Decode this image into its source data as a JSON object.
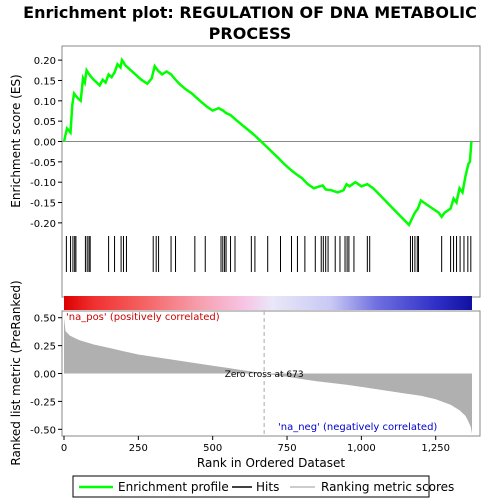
{
  "chart_data": {
    "type": "line",
    "title_line1": "Enrichment plot: REGULATION OF DNA METABOLIC",
    "title_line2": "PROCESS",
    "top_panel": {
      "ylabel": "Enrichment score (ES)",
      "ylim": [
        -0.22,
        0.22
      ],
      "yticks": [
        0.2,
        0.15,
        0.1,
        0.05,
        0.0,
        -0.05,
        -0.1,
        -0.15,
        -0.2
      ],
      "ytick_labels": [
        "0.20",
        "0.15",
        "0.10",
        "0.05",
        "0.00",
        "-0.05",
        "-0.10",
        "-0.15",
        "-0.20"
      ],
      "series_name": "Enrichment profile",
      "line_color": "#00ff00",
      "x": [
        0,
        10,
        22,
        28,
        34,
        40,
        48,
        56,
        64,
        70,
        76,
        82,
        90,
        100,
        110,
        120,
        130,
        140,
        150,
        160,
        170,
        180,
        190,
        195,
        200,
        205,
        220,
        240,
        260,
        280,
        295,
        305,
        315,
        330,
        345,
        360,
        375,
        390,
        410,
        430,
        445,
        460,
        480,
        500,
        520,
        535,
        545,
        560,
        580,
        600,
        620,
        640,
        660,
        680,
        700,
        720,
        740,
        760,
        780,
        800,
        820,
        840,
        860,
        870,
        880,
        900,
        920,
        940,
        950,
        960,
        980,
        1000,
        1020,
        1040,
        1060,
        1080,
        1100,
        1120,
        1140,
        1160,
        1170,
        1180,
        1190,
        1200,
        1220,
        1240,
        1260,
        1270,
        1280,
        1300,
        1310,
        1320,
        1330,
        1340,
        1350,
        1360,
        1365,
        1370
      ],
      "values": [
        0.0,
        0.032,
        0.022,
        0.09,
        0.118,
        0.112,
        0.105,
        0.1,
        0.155,
        0.145,
        0.175,
        0.168,
        0.16,
        0.152,
        0.145,
        0.138,
        0.152,
        0.145,
        0.165,
        0.158,
        0.17,
        0.19,
        0.182,
        0.2,
        0.195,
        0.188,
        0.178,
        0.165,
        0.152,
        0.142,
        0.155,
        0.185,
        0.175,
        0.165,
        0.172,
        0.165,
        0.152,
        0.14,
        0.128,
        0.118,
        0.108,
        0.098,
        0.086,
        0.076,
        0.082,
        0.076,
        0.07,
        0.065,
        0.052,
        0.04,
        0.028,
        0.016,
        0.002,
        -0.012,
        -0.026,
        -0.04,
        -0.055,
        -0.068,
        -0.08,
        -0.09,
        -0.105,
        -0.115,
        -0.11,
        -0.108,
        -0.118,
        -0.12,
        -0.125,
        -0.12,
        -0.105,
        -0.11,
        -0.1,
        -0.11,
        -0.105,
        -0.115,
        -0.13,
        -0.145,
        -0.16,
        -0.175,
        -0.19,
        -0.205,
        -0.19,
        -0.175,
        -0.165,
        -0.145,
        -0.155,
        -0.165,
        -0.175,
        -0.185,
        -0.175,
        -0.165,
        -0.14,
        -0.15,
        -0.115,
        -0.125,
        -0.085,
        -0.055,
        -0.05,
        0.0
      ]
    },
    "hits": [
      8,
      22,
      30,
      36,
      40,
      72,
      78,
      84,
      88,
      150,
      170,
      192,
      200,
      210,
      300,
      310,
      318,
      360,
      375,
      440,
      475,
      528,
      534,
      540,
      545,
      560,
      575,
      630,
      642,
      685,
      728,
      765,
      785,
      810,
      845,
      865,
      872,
      880,
      888,
      912,
      928,
      945,
      952,
      958,
      975,
      1020,
      1028,
      1165,
      1172,
      1180,
      1188,
      1192,
      1270,
      1300,
      1310,
      1320,
      1332,
      1345,
      1358,
      1368
    ],
    "bottom_panel": {
      "ylabel": "Ranked list metric (PreRanked)",
      "ylim": [
        -0.56,
        0.56
      ],
      "yticks": [
        0.5,
        0.25,
        0.0,
        -0.25,
        -0.5
      ],
      "ytick_labels": [
        "0.50",
        "0.25",
        "0.00",
        "-0.25",
        "-0.50"
      ],
      "profile_x": [
        0,
        5,
        20,
        50,
        100,
        150,
        200,
        250,
        300,
        350,
        400,
        450,
        500,
        550,
        600,
        650,
        673,
        700,
        750,
        800,
        850,
        900,
        950,
        1000,
        1050,
        1100,
        1150,
        1200,
        1250,
        1300,
        1330,
        1350,
        1360,
        1368,
        1372
      ],
      "profile_values": [
        0.5,
        0.38,
        0.34,
        0.3,
        0.26,
        0.23,
        0.2,
        0.17,
        0.15,
        0.13,
        0.11,
        0.09,
        0.07,
        0.05,
        0.03,
        0.01,
        0.0,
        -0.01,
        -0.03,
        -0.05,
        -0.07,
        -0.085,
        -0.1,
        -0.12,
        -0.14,
        -0.16,
        -0.18,
        -0.2,
        -0.23,
        -0.28,
        -0.33,
        -0.38,
        -0.43,
        -0.48,
        -0.54
      ],
      "zero_cross_label": "Zero cross at 673",
      "zero_cross_x": 673,
      "pos_label": "'na_pos' (positively correlated)",
      "neg_label": "'na_neg' (negatively correlated)",
      "pos_label_color": "#cc0000",
      "neg_label_color": "#0000cc"
    },
    "xlabel": "Rank in Dataset",
    "xlabel_prefix": "Rank in Ordered Dataset",
    "xlim": [
      0,
      1372
    ],
    "xticks": [
      0,
      250,
      500,
      750,
      1000,
      1250
    ],
    "xtick_labels": [
      "0",
      "250",
      "500",
      "750",
      "1,000",
      "1,250"
    ],
    "legend": {
      "items": [
        {
          "label": "Enrichment profile",
          "kind": "line",
          "color": "#00ff00"
        },
        {
          "label": "Hits",
          "kind": "line",
          "color": "#000000"
        },
        {
          "label": "Ranking metric scores",
          "kind": "line",
          "color": "#bbbbbb"
        }
      ]
    },
    "heatmap_stops": [
      {
        "at": 0,
        "color": "#dd0000"
      },
      {
        "at": 100,
        "color": "#f03030"
      },
      {
        "at": 260,
        "color": "#f46060"
      },
      {
        "at": 460,
        "color": "#f7a0b0"
      },
      {
        "at": 620,
        "color": "#f6c8e8"
      },
      {
        "at": 700,
        "color": "#e8e8f8"
      },
      {
        "at": 900,
        "color": "#c8c8f4"
      },
      {
        "at": 1050,
        "color": "#7070e0"
      },
      {
        "at": 1250,
        "color": "#3030c8"
      },
      {
        "at": 1372,
        "color": "#1010a0"
      }
    ]
  }
}
